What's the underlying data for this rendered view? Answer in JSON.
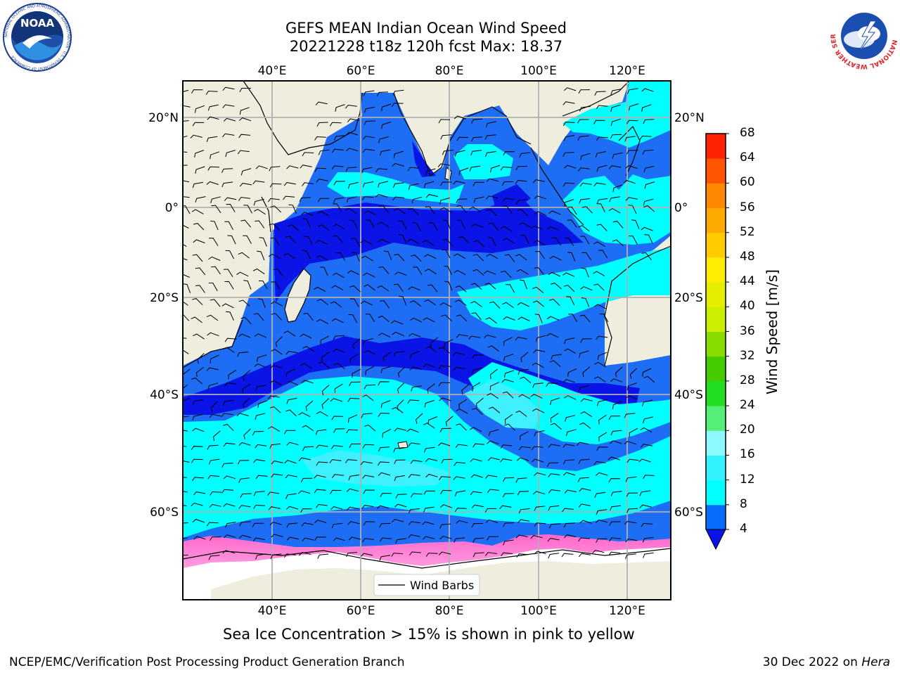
{
  "header": {
    "title_line1": "GEFS MEAN Indian Ocean Wind Speed",
    "title_line2": "20221228 t18z 120h fcst   Max: 18.37"
  },
  "logos": {
    "left_text": "NOAA",
    "left_ring_text": "NATIONAL OCEANIC AND ATMOSPHERIC ADMINISTRATION · U.S. DEPARTMENT OF COMMERCE",
    "right_ring_text": "NATIONAL WEATHER SERVICE"
  },
  "map": {
    "lon_labels_top": [
      "40°E",
      "60°E",
      "80°E",
      "100°E",
      "120°E"
    ],
    "lon_labels_bottom": [
      "40°E",
      "60°E",
      "80°E",
      "100°E",
      "120°E"
    ],
    "lat_labels_left": [
      "20°N",
      "0°",
      "20°S",
      "40°S",
      "60°S"
    ],
    "lat_labels_right": [
      "20°N",
      "0°",
      "20°S",
      "40°S",
      "60°S"
    ],
    "legend_label": "Wind Barbs",
    "colors": {
      "land": "#eeedde",
      "ocean_4_8": "#1e6ef5",
      "ocean_lt4": "#0a14e6",
      "ocean_8_12": "#00ffff",
      "ocean_12_16": "#3ff0ff",
      "ice_pink": "#ff66cc",
      "ice_yellow": "#ffd966"
    }
  },
  "colorbar": {
    "title": "Wind Speed [m/s]",
    "ticks": [
      "4",
      "8",
      "12",
      "16",
      "20",
      "24",
      "28",
      "32",
      "36",
      "40",
      "44",
      "48",
      "52",
      "56",
      "60",
      "64",
      "68"
    ],
    "colors": [
      "#0a6cff",
      "#00ffff",
      "#33f2ff",
      "#8cf8ff",
      "#55ee77",
      "#22dd22",
      "#44cc00",
      "#88dd00",
      "#ccee00",
      "#e6ee00",
      "#ffee00",
      "#ffcc00",
      "#ffaa00",
      "#ff8800",
      "#ff5500",
      "#ff2200"
    ],
    "under_color": "#0a14e6"
  },
  "caption": "Sea Ice Concentration > 15% is shown in pink to yellow",
  "footer": {
    "left": "NCEP/EMC/Verification Post Processing Product Generation Branch",
    "right_prefix": "30 Dec 2022 on ",
    "right_host": "Hera"
  }
}
